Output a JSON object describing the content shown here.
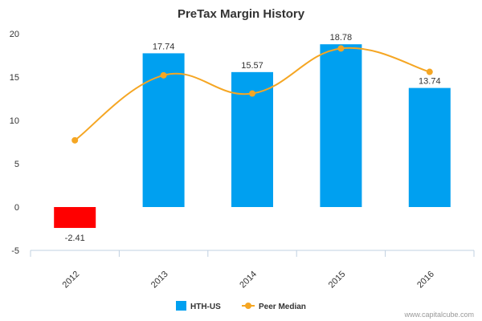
{
  "chart_data": {
    "type": "bar",
    "title": "PreTax Margin History",
    "categories": [
      "2012",
      "2013",
      "2014",
      "2015",
      "2016"
    ],
    "series": [
      {
        "name": "HTH-US",
        "kind": "bar",
        "values": [
          -2.41,
          17.74,
          15.57,
          18.78,
          13.74
        ],
        "labels": [
          "-2.41",
          "17.74",
          "15.57",
          "18.78",
          "13.74"
        ],
        "color": "#00a0f0",
        "negative_color": "#ff0000"
      },
      {
        "name": "Peer Median",
        "kind": "line",
        "values": [
          7.7,
          15.2,
          13.1,
          18.3,
          15.6
        ],
        "color": "#f5a623"
      }
    ],
    "ylim": [
      -5,
      20
    ],
    "yticks": [
      "20",
      "15",
      "10",
      "5",
      "0",
      "-5"
    ],
    "grid": false,
    "legend_position": "bottom"
  },
  "credit": "www.capitalcube.com"
}
